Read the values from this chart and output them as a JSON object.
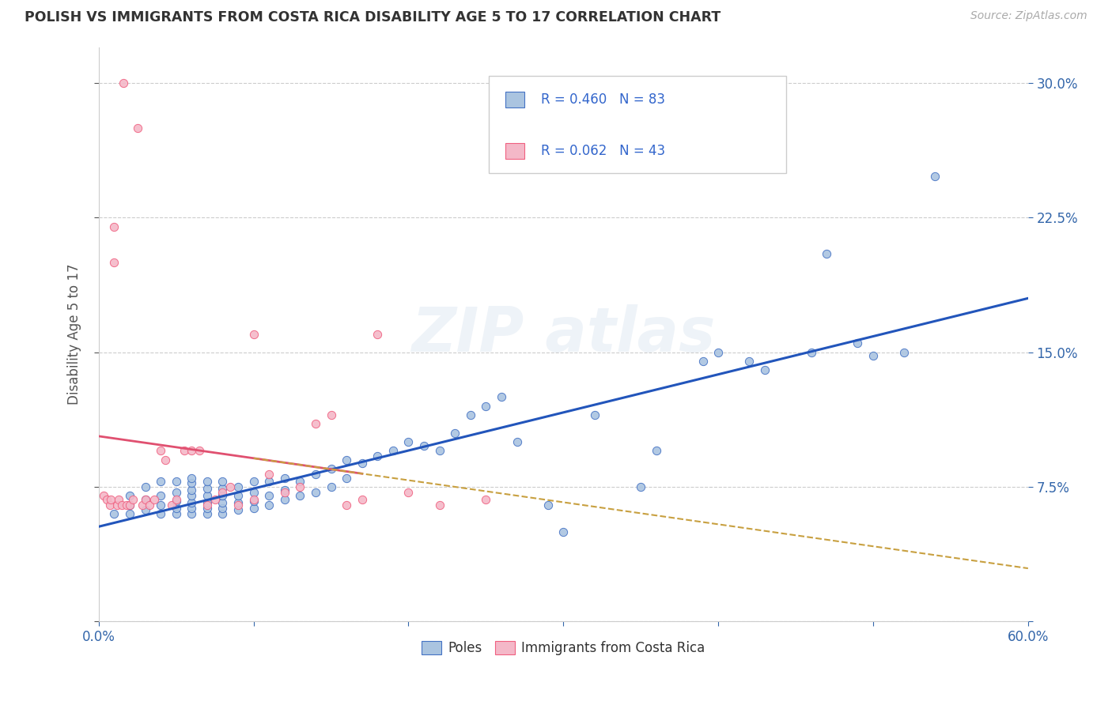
{
  "title": "POLISH VS IMMIGRANTS FROM COSTA RICA DISABILITY AGE 5 TO 17 CORRELATION CHART",
  "source": "Source: ZipAtlas.com",
  "ylabel": "Disability Age 5 to 17",
  "xlim": [
    0.0,
    0.6
  ],
  "ylim": [
    0.0,
    0.32
  ],
  "xticks": [
    0.0,
    0.1,
    0.2,
    0.3,
    0.4,
    0.5,
    0.6
  ],
  "yticks": [
    0.0,
    0.075,
    0.15,
    0.225,
    0.3
  ],
  "blue_R": 0.46,
  "blue_N": 83,
  "pink_R": 0.062,
  "pink_N": 43,
  "blue_fill": "#aac4e0",
  "pink_fill": "#f4b8c8",
  "blue_edge": "#4472c4",
  "pink_edge": "#f06080",
  "blue_line": "#2255bb",
  "pink_line": "#e05070",
  "dashed_line": "#c8a040",
  "legend_label_blue": "Poles",
  "legend_label_pink": "Immigrants from Costa Rica",
  "blue_scatter_x": [
    0.01,
    0.02,
    0.02,
    0.02,
    0.03,
    0.03,
    0.03,
    0.04,
    0.04,
    0.04,
    0.04,
    0.05,
    0.05,
    0.05,
    0.05,
    0.05,
    0.06,
    0.06,
    0.06,
    0.06,
    0.06,
    0.06,
    0.06,
    0.07,
    0.07,
    0.07,
    0.07,
    0.07,
    0.07,
    0.08,
    0.08,
    0.08,
    0.08,
    0.08,
    0.08,
    0.09,
    0.09,
    0.09,
    0.09,
    0.1,
    0.1,
    0.1,
    0.1,
    0.11,
    0.11,
    0.11,
    0.12,
    0.12,
    0.12,
    0.13,
    0.13,
    0.14,
    0.14,
    0.15,
    0.15,
    0.16,
    0.16,
    0.17,
    0.18,
    0.19,
    0.2,
    0.21,
    0.22,
    0.23,
    0.24,
    0.25,
    0.26,
    0.27,
    0.29,
    0.3,
    0.32,
    0.35,
    0.36,
    0.39,
    0.4,
    0.42,
    0.43,
    0.46,
    0.47,
    0.49,
    0.5,
    0.52,
    0.54
  ],
  "blue_scatter_y": [
    0.06,
    0.06,
    0.065,
    0.07,
    0.062,
    0.068,
    0.075,
    0.06,
    0.065,
    0.07,
    0.078,
    0.06,
    0.063,
    0.067,
    0.072,
    0.078,
    0.06,
    0.063,
    0.066,
    0.07,
    0.073,
    0.077,
    0.08,
    0.06,
    0.063,
    0.066,
    0.07,
    0.074,
    0.078,
    0.06,
    0.063,
    0.066,
    0.07,
    0.074,
    0.078,
    0.062,
    0.066,
    0.07,
    0.075,
    0.063,
    0.067,
    0.072,
    0.078,
    0.065,
    0.07,
    0.078,
    0.068,
    0.073,
    0.08,
    0.07,
    0.078,
    0.072,
    0.082,
    0.075,
    0.085,
    0.08,
    0.09,
    0.088,
    0.092,
    0.095,
    0.1,
    0.098,
    0.095,
    0.105,
    0.115,
    0.12,
    0.125,
    0.1,
    0.065,
    0.05,
    0.115,
    0.075,
    0.095,
    0.145,
    0.15,
    0.145,
    0.14,
    0.15,
    0.205,
    0.155,
    0.148,
    0.15,
    0.248
  ],
  "pink_scatter_x": [
    0.003,
    0.005,
    0.007,
    0.008,
    0.01,
    0.01,
    0.012,
    0.013,
    0.015,
    0.016,
    0.018,
    0.02,
    0.022,
    0.025,
    0.028,
    0.03,
    0.033,
    0.036,
    0.04,
    0.043,
    0.047,
    0.05,
    0.055,
    0.06,
    0.065,
    0.07,
    0.075,
    0.08,
    0.085,
    0.09,
    0.1,
    0.11,
    0.12,
    0.13,
    0.14,
    0.15,
    0.16,
    0.17,
    0.18,
    0.2,
    0.22,
    0.25,
    0.1
  ],
  "pink_scatter_y": [
    0.07,
    0.068,
    0.065,
    0.068,
    0.22,
    0.2,
    0.065,
    0.068,
    0.065,
    0.3,
    0.065,
    0.065,
    0.068,
    0.275,
    0.065,
    0.068,
    0.065,
    0.068,
    0.095,
    0.09,
    0.065,
    0.068,
    0.095,
    0.095,
    0.095,
    0.065,
    0.068,
    0.072,
    0.075,
    0.065,
    0.068,
    0.082,
    0.072,
    0.075,
    0.11,
    0.115,
    0.065,
    0.068,
    0.16,
    0.072,
    0.065,
    0.068,
    0.16
  ]
}
